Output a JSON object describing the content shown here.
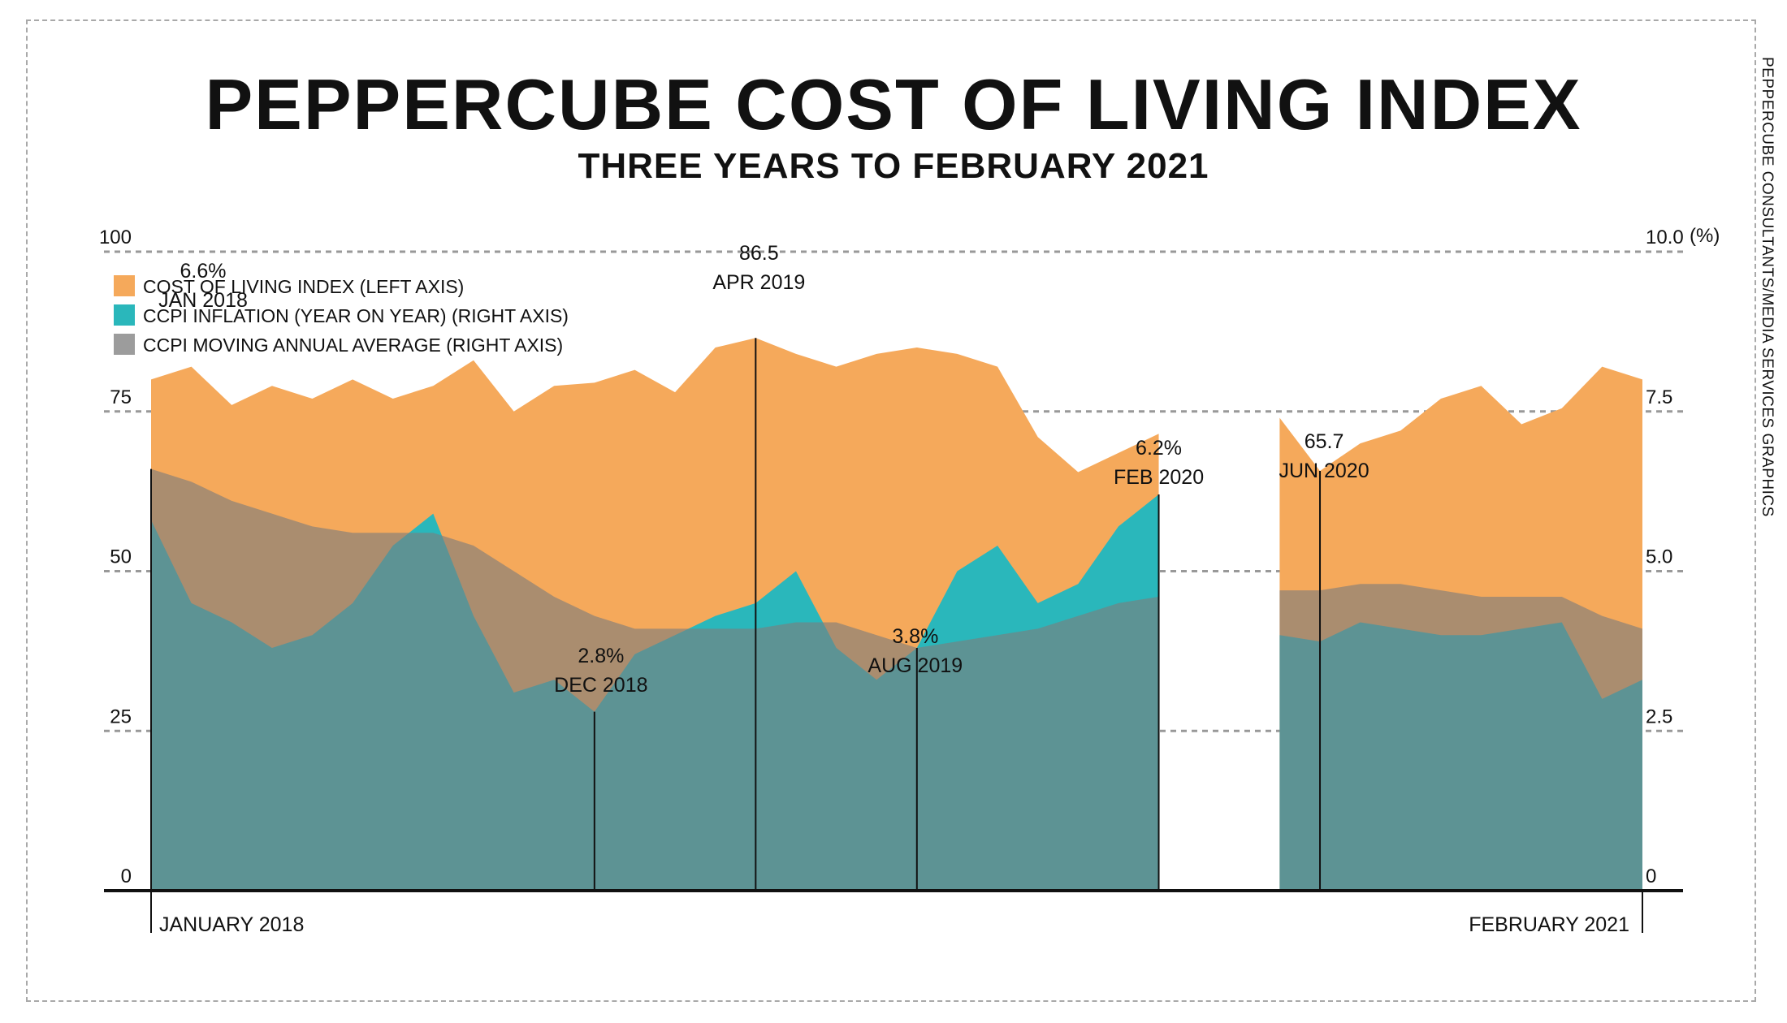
{
  "header": {
    "title": "PEPPERCUBE COST OF LIVING INDEX",
    "subtitle": "THREE YEARS TO FEBRUARY 2021",
    "credit": "PEPPERCUBE CONSULTANTS/MEDIA SERVICES GRAPHICS"
  },
  "chart_data": {
    "type": "area",
    "x": [
      "2018-01",
      "2018-02",
      "2018-03",
      "2018-04",
      "2018-05",
      "2018-06",
      "2018-07",
      "2018-08",
      "2018-09",
      "2018-10",
      "2018-11",
      "2018-12",
      "2019-01",
      "2019-02",
      "2019-03",
      "2019-04",
      "2019-05",
      "2019-06",
      "2019-07",
      "2019-08",
      "2019-09",
      "2019-10",
      "2019-11",
      "2019-12",
      "2020-01",
      "2020-02",
      "2020-03",
      "2020-04",
      "2020-05",
      "2020-06",
      "2020-07",
      "2020-08",
      "2020-09",
      "2020-10",
      "2020-11",
      "2020-12",
      "2021-01",
      "2021-02"
    ],
    "x_tick_labels": {
      "start": "JANUARY 2018",
      "end": "FEBRUARY 2021"
    },
    "left_axis": {
      "ylim": [
        0,
        100
      ],
      "ticks": [
        "0",
        "25",
        "50",
        "75",
        "100"
      ]
    },
    "right_axis": {
      "ylim": [
        0,
        10
      ],
      "ticks": [
        "0",
        "2.5",
        "5.0",
        "7.5",
        "10.0"
      ],
      "unit": "(%)"
    },
    "grid": "dashed horizontal at each tick",
    "legend_position": "top-left",
    "series": [
      {
        "name": "COST OF LIVING INDEX (LEFT AXIS)",
        "axis": "left",
        "color": "#f5a95b",
        "values": [
          80,
          82,
          76,
          79,
          77,
          80,
          77,
          79,
          83,
          75,
          79,
          79.5,
          81.5,
          78,
          85,
          86.5,
          84,
          82,
          84,
          85,
          84,
          82,
          71,
          65.5,
          68.5,
          71.5,
          null,
          null,
          74,
          65.7,
          70,
          72,
          77,
          79,
          73,
          75.5,
          82,
          80
        ]
      },
      {
        "name": "CCPI INFLATION (YEAR ON YEAR) (RIGHT AXIS)",
        "axis": "right",
        "color": "#2ab7bb",
        "values": [
          5.8,
          4.5,
          4.2,
          3.8,
          4.0,
          4.5,
          5.4,
          5.9,
          4.3,
          3.1,
          3.3,
          2.8,
          3.7,
          4.0,
          4.3,
          4.5,
          5.0,
          3.8,
          3.3,
          3.8,
          5.0,
          5.4,
          4.5,
          4.8,
          5.7,
          6.2,
          null,
          null,
          4.0,
          3.9,
          4.2,
          4.1,
          4.0,
          4.0,
          4.1,
          4.2,
          3.0,
          3.3
        ]
      },
      {
        "name": "CCPI MOVING ANNUAL AVERAGE (RIGHT AXIS)",
        "axis": "right",
        "color": "#9c9c9c",
        "values": [
          6.6,
          6.4,
          6.1,
          5.9,
          5.7,
          5.6,
          5.6,
          5.6,
          5.4,
          5.0,
          4.6,
          4.3,
          4.1,
          4.1,
          4.1,
          4.1,
          4.2,
          4.2,
          4.0,
          3.8,
          3.9,
          4.0,
          4.1,
          4.3,
          4.5,
          4.6,
          null,
          null,
          4.7,
          4.7,
          4.8,
          4.8,
          4.7,
          4.6,
          4.6,
          4.6,
          4.3,
          4.1
        ]
      }
    ],
    "annotations": [
      {
        "x": "2018-01",
        "value": "6.6%",
        "date": "JAN 2018"
      },
      {
        "x": "2018-12",
        "value": "2.8%",
        "date": "DEC 2018"
      },
      {
        "x": "2019-04",
        "value": "86.5",
        "date": "APR 2019"
      },
      {
        "x": "2019-08",
        "value": "3.8%",
        "date": "AUG 2019"
      },
      {
        "x": "2020-02",
        "value": "6.2%",
        "date": "FEB 2020"
      },
      {
        "x": "2020-06",
        "value": "65.7",
        "date": "JUN 2020"
      }
    ]
  }
}
